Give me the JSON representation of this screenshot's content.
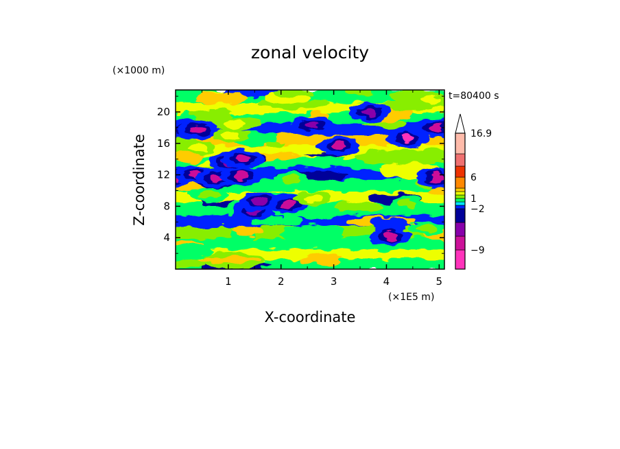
{
  "chart_data": {
    "type": "heatmap",
    "title": "zonal velocity",
    "xlabel": "X-coordinate",
    "ylabel": "Z-coordinate",
    "x_unit": "(×1E5 m)",
    "y_unit": "(×1000 m)",
    "time_label": "t=80400 s",
    "xlim": [
      0,
      5.1
    ],
    "ylim": [
      0,
      22.8
    ],
    "x_ticks": [
      1,
      2,
      3,
      4,
      5
    ],
    "y_ticks": [
      4,
      8,
      12,
      16,
      20
    ],
    "x_tick_labels": [
      "1",
      "2",
      "3",
      "4",
      "5"
    ],
    "y_tick_labels": [
      "4",
      "8",
      "12",
      "16",
      "20"
    ],
    "colorbar": {
      "levels": [
        -9,
        -6,
        -4,
        -2,
        -1,
        0,
        1,
        2,
        3,
        4,
        6,
        9,
        12,
        16.9
      ],
      "labels": [
        "16.9",
        "6",
        "1",
        "−2",
        "−9"
      ],
      "label_values": [
        16.9,
        6,
        1,
        -2,
        -9
      ],
      "colors": [
        "#ff33bb",
        "#cc1199",
        "#8800aa",
        "#000099",
        "#0022ff",
        "#00e5ff",
        "#00ff66",
        "#88ee00",
        "#eeff00",
        "#ffcc00",
        "#ff8800",
        "#ee3300",
        "#f07070",
        "#ffbbaa"
      ],
      "extend": "max"
    },
    "features": [
      {
        "x": 0.22,
        "z": 17.8,
        "value": -6
      },
      {
        "x": 0.43,
        "z": 17.8,
        "value": -6
      },
      {
        "x": 0.05,
        "z": 11.8,
        "value": -6
      },
      {
        "x": 0.38,
        "z": 12.0,
        "value": -6
      },
      {
        "x": 0.78,
        "z": 11.6,
        "value": -6
      },
      {
        "x": 1.25,
        "z": 11.8,
        "value": -6
      },
      {
        "x": 1.03,
        "z": 13.6,
        "value": -4
      },
      {
        "x": 1.28,
        "z": 14.1,
        "value": -6
      },
      {
        "x": 1.47,
        "z": 7.4,
        "value": -5
      },
      {
        "x": 1.6,
        "z": 8.6,
        "value": -5
      },
      {
        "x": 2.15,
        "z": 8.3,
        "value": -6
      },
      {
        "x": 3.1,
        "z": 15.7,
        "value": -6
      },
      {
        "x": 4.41,
        "z": 16.6,
        "value": -9
      },
      {
        "x": 4.95,
        "z": 18.0,
        "value": -6
      },
      {
        "x": 4.95,
        "z": 11.6,
        "value": -6
      },
      {
        "x": 4.07,
        "z": 4.2,
        "value": -6
      },
      {
        "x": 3.68,
        "z": 20.0,
        "value": -4
      },
      {
        "x": 2.58,
        "z": 18.3,
        "value": -5
      },
      {
        "x": 1.12,
        "z": 18.5,
        "value": 3
      },
      {
        "x": 1.05,
        "z": 17.0,
        "value": 3
      },
      {
        "x": 0.4,
        "z": 15.5,
        "value": 3
      },
      {
        "x": 4.85,
        "z": 21.5,
        "value": 3
      },
      {
        "x": 0.63,
        "z": 9.5,
        "value": 2
      },
      {
        "x": 2.2,
        "z": 11.5,
        "value": 2
      },
      {
        "x": 4.4,
        "z": 8.3,
        "value": 2
      },
      {
        "x": 2.6,
        "z": 9.0,
        "value": 3
      },
      {
        "x": 4.75,
        "z": 5.2,
        "value": 2
      }
    ]
  }
}
